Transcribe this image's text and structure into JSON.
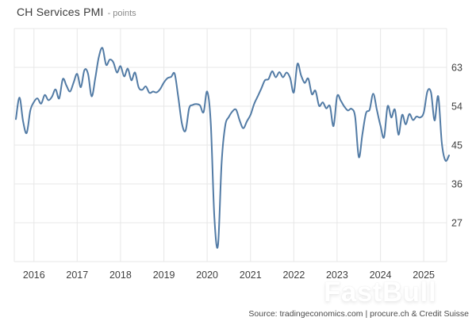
{
  "title": {
    "main": "CH Services PMI",
    "sub": "- points"
  },
  "watermark": "FastBull",
  "footer": {
    "source": "Source: tradingeconomics.com | procure.ch & Credit Suisse"
  },
  "chart_data": {
    "type": "line",
    "title": "CH Services PMI",
    "unit": "points",
    "xlabel": "",
    "ylabel": "points",
    "grid": true,
    "legend_position": "none",
    "ylim": [
      18,
      72
    ],
    "y_grid_values": [
      72,
      63,
      54,
      45,
      36,
      27,
      18
    ],
    "y_tick_labels": [
      63,
      54,
      45,
      36,
      27
    ],
    "x_tick_labels": [
      "2016",
      "2017",
      "2018",
      "2019",
      "2020",
      "2021",
      "2022",
      "2023",
      "2024",
      "2025"
    ],
    "line_color": "#527ba5",
    "grid_color": "#e7e7e7",
    "label_color": "#3f3f3f",
    "series": [
      {
        "name": "CH Services PMI",
        "frequency": "monthly",
        "start": "2015-08",
        "end": "2025-08",
        "values": [
          51.0,
          56.0,
          50.5,
          47.8,
          53.0,
          55.0,
          55.8,
          54.6,
          56.6,
          55.4,
          56.2,
          57.9,
          55.8,
          60.3,
          58.8,
          57.4,
          59.5,
          61.5,
          58.4,
          62.4,
          61.5,
          56.3,
          60.5,
          65.5,
          67.5,
          63.6,
          64.8,
          64.2,
          61.8,
          63.3,
          60.9,
          62.7,
          60.0,
          61.8,
          58.4,
          57.8,
          58.6,
          57.1,
          57.4,
          57.2,
          58.0,
          59.5,
          60.5,
          60.8,
          61.5,
          56.0,
          50.0,
          48.3,
          53.5,
          54.3,
          54.5,
          54.2,
          52.6,
          57.4,
          50.0,
          28.0,
          21.8,
          41.0,
          49.5,
          51.5,
          52.8,
          53.2,
          50.7,
          48.9,
          50.5,
          52.0,
          54.5,
          56.3,
          58.1,
          60.0,
          60.3,
          62.1,
          60.7,
          61.9,
          60.7,
          61.8,
          60.5,
          57.2,
          63.8,
          61.2,
          59.4,
          60.4,
          56.8,
          57.6,
          54.1,
          54.9,
          53.5,
          54.0,
          49.4,
          56.3,
          55.3,
          53.9,
          53.0,
          53.4,
          51.5,
          42.2,
          47.5,
          52.4,
          53.2,
          56.9,
          53.2,
          49.5,
          46.8,
          54.0,
          51.4,
          53.2,
          47.4,
          52.0,
          49.8,
          52.2,
          50.8,
          51.6,
          51.4,
          52.5,
          57.4,
          57.2,
          50.7,
          56.3,
          45.5,
          41.4,
          42.6
        ]
      }
    ]
  }
}
